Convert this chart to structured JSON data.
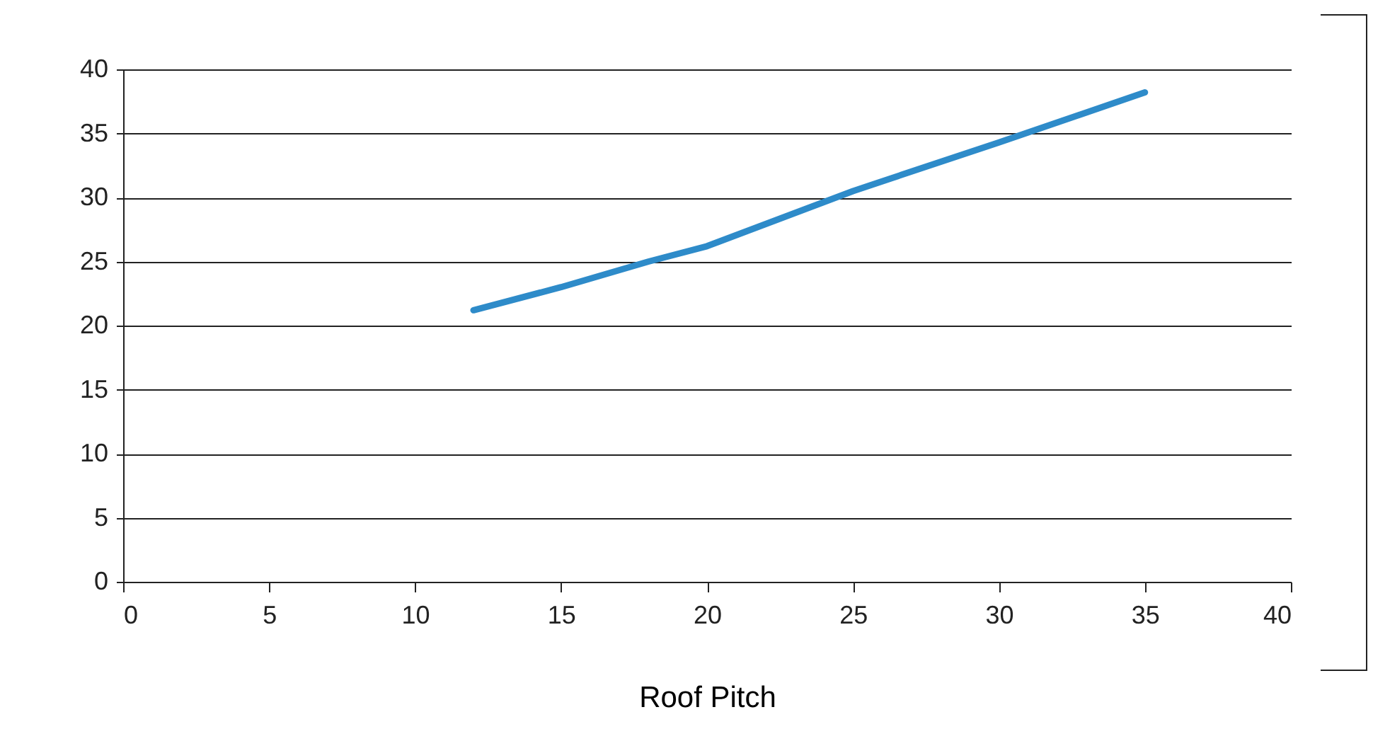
{
  "chart_data": {
    "type": "line",
    "xlabel": "Roof Pitch",
    "x": [
      12,
      15,
      18,
      20,
      25,
      30,
      35
    ],
    "series": [
      {
        "color": "#2e8bc9",
        "values": [
          21.2,
          23,
          25,
          26.2,
          30.5,
          34.3,
          38.2
        ]
      }
    ],
    "xlim": [
      0,
      40
    ],
    "xticks": [
      0,
      5,
      10,
      15,
      20,
      25,
      30,
      35,
      40
    ],
    "ylim": [
      0,
      40
    ],
    "yticks": [
      0,
      5,
      10,
      15,
      20,
      25,
      30,
      35,
      40
    ],
    "grid": "y",
    "marker": "none",
    "line_style": "solid"
  }
}
